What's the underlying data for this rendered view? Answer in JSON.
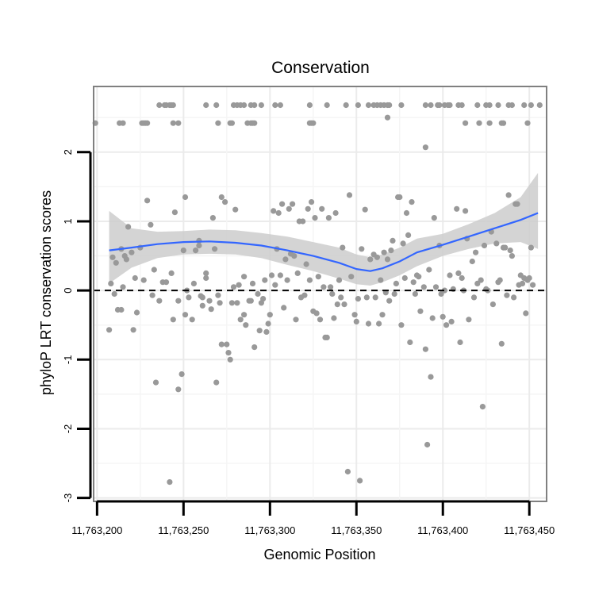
{
  "chart_data": {
    "type": "scatter",
    "title": "Conservation",
    "xlabel": "Genomic Position",
    "ylabel": "phyloP LRT conservation scores",
    "xlim": [
      11763198,
      11763460
    ],
    "ylim": [
      -3.05,
      2.95
    ],
    "x_ticks": [
      11763200,
      11763250,
      11763300,
      11763350,
      11763400,
      11763450
    ],
    "x_tick_labels": [
      "11,763,200",
      "11,763,250",
      "11,763,300",
      "11,763,350",
      "11,763,400",
      "11,763,450"
    ],
    "y_ticks": [
      -3,
      -2,
      -1,
      0,
      1,
      2
    ],
    "y_tick_labels": [
      "-3",
      "-2",
      "-1",
      "0",
      "1",
      "2"
    ],
    "grid": true,
    "reference_line": {
      "y": 0,
      "style": "dashed"
    },
    "points": [
      [
        11763207,
        -0.57
      ],
      [
        11763208,
        0.1
      ],
      [
        11763209,
        0.48
      ],
      [
        11763210,
        -0.05
      ],
      [
        11763211,
        0.4
      ],
      [
        11763212,
        -0.28
      ],
      [
        11763214,
        0.6
      ],
      [
        11763214,
        -0.28
      ],
      [
        11763215,
        0.05
      ],
      [
        11763216,
        0.5
      ],
      [
        11763217,
        0.45
      ],
      [
        11763218,
        0.92
      ],
      [
        11763220,
        0.55
      ],
      [
        11763221,
        -0.57
      ],
      [
        11763222,
        0.18
      ],
      [
        11763223,
        -0.32
      ],
      [
        11763225,
        0.62
      ],
      [
        11763227,
        0.15
      ],
      [
        11763229,
        1.3
      ],
      [
        11763231,
        0.95
      ],
      [
        11763232,
        -0.07
      ],
      [
        11763233,
        0.3
      ],
      [
        11763234,
        -1.33
      ],
      [
        11763236,
        -0.15
      ],
      [
        11763238,
        0.12
      ],
      [
        11763240,
        0.12
      ],
      [
        11763242,
        -2.77
      ],
      [
        11763243,
        0.25
      ],
      [
        11763244,
        -0.42
      ],
      [
        11763245,
        1.13
      ],
      [
        11763247,
        -0.15
      ],
      [
        11763247,
        -1.43
      ],
      [
        11763249,
        -1.21
      ],
      [
        11763250,
        0.58
      ],
      [
        11763251,
        -0.35
      ],
      [
        11763251,
        1.35
      ],
      [
        11763252,
        0.0
      ],
      [
        11763253,
        -0.1
      ],
      [
        11763255,
        -0.42
      ],
      [
        11763256,
        0.1
      ],
      [
        11763257,
        0.58
      ],
      [
        11763259,
        0.65
      ],
      [
        11763259,
        0.72
      ],
      [
        11763260,
        -0.08
      ],
      [
        11763261,
        -0.1
      ],
      [
        11763261,
        -0.22
      ],
      [
        11763263,
        0.18
      ],
      [
        11763263,
        0.25
      ],
      [
        11763265,
        -0.15
      ],
      [
        11763266,
        -0.27
      ],
      [
        11763267,
        1.05
      ],
      [
        11763268,
        0.6
      ],
      [
        11763269,
        -1.33
      ],
      [
        11763270,
        -0.07
      ],
      [
        11763271,
        -0.18
      ],
      [
        11763272,
        1.35
      ],
      [
        11763272,
        -0.78
      ],
      [
        11763274,
        1.28
      ],
      [
        11763275,
        -0.78
      ],
      [
        11763276,
        -0.9
      ],
      [
        11763277,
        -1.0
      ],
      [
        11763278,
        -0.18
      ],
      [
        11763279,
        0.05
      ],
      [
        11763280,
        1.17
      ],
      [
        11763281,
        -0.18
      ],
      [
        11763282,
        0.08
      ],
      [
        11763283,
        -0.42
      ],
      [
        11763285,
        0.2
      ],
      [
        11763285,
        -0.35
      ],
      [
        11763286,
        -0.5
      ],
      [
        11763288,
        -0.15
      ],
      [
        11763289,
        -0.15
      ],
      [
        11763290,
        0.1
      ],
      [
        11763291,
        -0.82
      ],
      [
        11763293,
        -0.05
      ],
      [
        11763294,
        -0.58
      ],
      [
        11763295,
        -0.18
      ],
      [
        11763296,
        -0.12
      ],
      [
        11763297,
        0.15
      ],
      [
        11763298,
        -0.6
      ],
      [
        11763299,
        -0.48
      ],
      [
        11763300,
        -0.35
      ],
      [
        11763301,
        0.22
      ],
      [
        11763302,
        1.15
      ],
      [
        11763303,
        0.08
      ],
      [
        11763304,
        0.6
      ],
      [
        11763305,
        1.12
      ],
      [
        11763306,
        0.22
      ],
      [
        11763307,
        1.25
      ],
      [
        11763308,
        -0.25
      ],
      [
        11763309,
        0.45
      ],
      [
        11763310,
        0.15
      ],
      [
        11763311,
        1.18
      ],
      [
        11763312,
        0.53
      ],
      [
        11763313,
        1.25
      ],
      [
        11763314,
        0.5
      ],
      [
        11763315,
        -0.42
      ],
      [
        11763316,
        0.25
      ],
      [
        11763317,
        1.0
      ],
      [
        11763318,
        -0.1
      ],
      [
        11763319,
        1.0
      ],
      [
        11763320,
        -0.07
      ],
      [
        11763321,
        0.38
      ],
      [
        11763322,
        1.18
      ],
      [
        11763323,
        0.15
      ],
      [
        11763324,
        1.28
      ],
      [
        11763325,
        -0.3
      ],
      [
        11763326,
        1.05
      ],
      [
        11763327,
        -0.33
      ],
      [
        11763328,
        0.2
      ],
      [
        11763329,
        -0.42
      ],
      [
        11763330,
        1.18
      ],
      [
        11763331,
        0.05
      ],
      [
        11763332,
        -0.68
      ],
      [
        11763333,
        -0.68
      ],
      [
        11763334,
        1.05
      ],
      [
        11763335,
        0.05
      ],
      [
        11763336,
        -0.05
      ],
      [
        11763337,
        -0.4
      ],
      [
        11763338,
        1.12
      ],
      [
        11763339,
        -0.2
      ],
      [
        11763340,
        0.15
      ],
      [
        11763341,
        -0.1
      ],
      [
        11763342,
        0.62
      ],
      [
        11763343,
        -0.2
      ],
      [
        11763345,
        -2.62
      ],
      [
        11763346,
        1.38
      ],
      [
        11763347,
        0.2
      ],
      [
        11763349,
        -0.35
      ],
      [
        11763350,
        -0.45
      ],
      [
        11763351,
        -0.12
      ],
      [
        11763352,
        -2.75
      ],
      [
        11763353,
        0.6
      ],
      [
        11763355,
        1.17
      ],
      [
        11763356,
        -0.1
      ],
      [
        11763357,
        -0.48
      ],
      [
        11763358,
        0.45
      ],
      [
        11763360,
        0.52
      ],
      [
        11763361,
        -0.1
      ],
      [
        11763362,
        0.48
      ],
      [
        11763363,
        -0.48
      ],
      [
        11763364,
        0.15
      ],
      [
        11763365,
        -0.35
      ],
      [
        11763366,
        0.55
      ],
      [
        11763367,
        -0.03
      ],
      [
        11763368,
        0.45
      ],
      [
        11763369,
        -0.15
      ],
      [
        11763370,
        0.58
      ],
      [
        11763371,
        0.72
      ],
      [
        11763372,
        -0.05
      ],
      [
        11763373,
        0.1
      ],
      [
        11763374,
        1.35
      ],
      [
        11763375,
        1.35
      ],
      [
        11763376,
        -0.5
      ],
      [
        11763377,
        0.68
      ],
      [
        11763378,
        0.18
      ],
      [
        11763379,
        1.12
      ],
      [
        11763380,
        0.8
      ],
      [
        11763381,
        -0.75
      ],
      [
        11763382,
        1.28
      ],
      [
        11763383,
        0.12
      ],
      [
        11763384,
        -0.05
      ],
      [
        11763385,
        0.22
      ],
      [
        11763386,
        0.2
      ],
      [
        11763387,
        -0.3
      ],
      [
        11763389,
        0.05
      ],
      [
        11763390,
        -0.85
      ],
      [
        11763391,
        -2.23
      ],
      [
        11763392,
        0.3
      ],
      [
        11763393,
        -1.25
      ],
      [
        11763394,
        -0.4
      ],
      [
        11763395,
        1.05
      ],
      [
        11763396,
        0.05
      ],
      [
        11763398,
        0.65
      ],
      [
        11763399,
        -0.05
      ],
      [
        11763400,
        -0.38
      ],
      [
        11763401,
        0.0
      ],
      [
        11763402,
        -0.5
      ],
      [
        11763404,
        0.22
      ],
      [
        11763405,
        -0.45
      ],
      [
        11763406,
        0.02
      ],
      [
        11763408,
        1.18
      ],
      [
        11763409,
        0.25
      ],
      [
        11763410,
        -0.75
      ],
      [
        11763411,
        0.18
      ],
      [
        11763412,
        0.0
      ],
      [
        11763413,
        1.15
      ],
      [
        11763414,
        0.75
      ],
      [
        11763415,
        -0.42
      ],
      [
        11763417,
        0.42
      ],
      [
        11763418,
        -0.1
      ],
      [
        11763419,
        0.55
      ],
      [
        11763420,
        0.1
      ],
      [
        11763422,
        0.15
      ],
      [
        11763423,
        -1.68
      ],
      [
        11763424,
        0.65
      ],
      [
        11763425,
        0.02
      ],
      [
        11763426,
        0.0
      ],
      [
        11763428,
        0.85
      ],
      [
        11763429,
        -0.2
      ],
      [
        11763431,
        0.68
      ],
      [
        11763432,
        0.12
      ],
      [
        11763433,
        0.15
      ],
      [
        11763434,
        -0.77
      ],
      [
        11763435,
        0.62
      ],
      [
        11763436,
        0.62
      ],
      [
        11763437,
        -0.07
      ],
      [
        11763438,
        1.38
      ],
      [
        11763439,
        0.58
      ],
      [
        11763440,
        0.5
      ],
      [
        11763441,
        -0.1
      ],
      [
        11763442,
        1.25
      ],
      [
        11763443,
        1.25
      ],
      [
        11763444,
        0.08
      ],
      [
        11763445,
        0.22
      ],
      [
        11763446,
        0.1
      ],
      [
        11763447,
        0.18
      ],
      [
        11763448,
        -0.33
      ],
      [
        11763449,
        0.15
      ],
      [
        11763450,
        0.18
      ],
      [
        11763451,
        0.62
      ],
      [
        11763452,
        0.08
      ],
      [
        11763199,
        2.42
      ],
      [
        11763213,
        2.42
      ],
      [
        11763215,
        2.42
      ],
      [
        11763226,
        2.42
      ],
      [
        11763227,
        2.42
      ],
      [
        11763228,
        2.42
      ],
      [
        11763229,
        2.42
      ],
      [
        11763244,
        2.42
      ],
      [
        11763247,
        2.42
      ],
      [
        11763270,
        2.42
      ],
      [
        11763277,
        2.42
      ],
      [
        11763278,
        2.42
      ],
      [
        11763287,
        2.42
      ],
      [
        11763289,
        2.42
      ],
      [
        11763290,
        2.42
      ],
      [
        11763291,
        2.42
      ],
      [
        11763323,
        2.42
      ],
      [
        11763324,
        2.42
      ],
      [
        11763325,
        2.42
      ],
      [
        11763413,
        2.42
      ],
      [
        11763421,
        2.42
      ],
      [
        11763427,
        2.42
      ],
      [
        11763434,
        2.42
      ],
      [
        11763435,
        2.42
      ],
      [
        11763449,
        2.42
      ],
      [
        11763236,
        2.68
      ],
      [
        11763239,
        2.68
      ],
      [
        11763240,
        2.68
      ],
      [
        11763242,
        2.68
      ],
      [
        11763243,
        2.68
      ],
      [
        11763244,
        2.68
      ],
      [
        11763263,
        2.68
      ],
      [
        11763269,
        2.68
      ],
      [
        11763279,
        2.68
      ],
      [
        11763281,
        2.68
      ],
      [
        11763283,
        2.68
      ],
      [
        11763285,
        2.68
      ],
      [
        11763289,
        2.68
      ],
      [
        11763291,
        2.68
      ],
      [
        11763295,
        2.68
      ],
      [
        11763303,
        2.68
      ],
      [
        11763306,
        2.68
      ],
      [
        11763323,
        2.68
      ],
      [
        11763333,
        2.68
      ],
      [
        11763344,
        2.68
      ],
      [
        11763351,
        2.68
      ],
      [
        11763357,
        2.68
      ],
      [
        11763360,
        2.68
      ],
      [
        11763362,
        2.68
      ],
      [
        11763364,
        2.68
      ],
      [
        11763366,
        2.68
      ],
      [
        11763368,
        2.68
      ],
      [
        11763369,
        2.68
      ],
      [
        11763376,
        2.68
      ],
      [
        11763390,
        2.68
      ],
      [
        11763393,
        2.68
      ],
      [
        11763397,
        2.68
      ],
      [
        11763398,
        2.68
      ],
      [
        11763401,
        2.68
      ],
      [
        11763403,
        2.68
      ],
      [
        11763404,
        2.68
      ],
      [
        11763409,
        2.68
      ],
      [
        11763411,
        2.68
      ],
      [
        11763420,
        2.68
      ],
      [
        11763425,
        2.68
      ],
      [
        11763427,
        2.68
      ],
      [
        11763432,
        2.68
      ],
      [
        11763438,
        2.68
      ],
      [
        11763440,
        2.68
      ],
      [
        11763447,
        2.68
      ],
      [
        11763451,
        2.68
      ],
      [
        11763456,
        2.68
      ],
      [
        11763368,
        2.5
      ],
      [
        11763390,
        2.07
      ]
    ],
    "smooth_fit": {
      "x": [
        11763207,
        11763220,
        11763235,
        11763250,
        11763265,
        11763280,
        11763295,
        11763310,
        11763325,
        11763340,
        11763350,
        11763358,
        11763365,
        11763375,
        11763385,
        11763400,
        11763415,
        11763430,
        11763445,
        11763455
      ],
      "y": [
        0.58,
        0.62,
        0.67,
        0.7,
        0.71,
        0.69,
        0.65,
        0.58,
        0.5,
        0.4,
        0.31,
        0.28,
        0.32,
        0.42,
        0.55,
        0.66,
        0.78,
        0.9,
        1.02,
        1.12
      ],
      "ci_lower": [
        0.1,
        0.33,
        0.47,
        0.52,
        0.53,
        0.52,
        0.47,
        0.37,
        0.28,
        0.17,
        0.09,
        0.07,
        0.12,
        0.22,
        0.35,
        0.5,
        0.6,
        0.68,
        0.7,
        0.6
      ],
      "ci_upper": [
        1.15,
        0.9,
        0.85,
        0.86,
        0.88,
        0.87,
        0.83,
        0.78,
        0.7,
        0.62,
        0.52,
        0.48,
        0.52,
        0.62,
        0.75,
        0.82,
        0.96,
        1.12,
        1.35,
        1.7
      ]
    },
    "colors": {
      "points": "#999999",
      "line": "#3366ff",
      "ribbon": "#cccccc",
      "grid": "#ebebeb",
      "panel_border": "#808080"
    }
  }
}
